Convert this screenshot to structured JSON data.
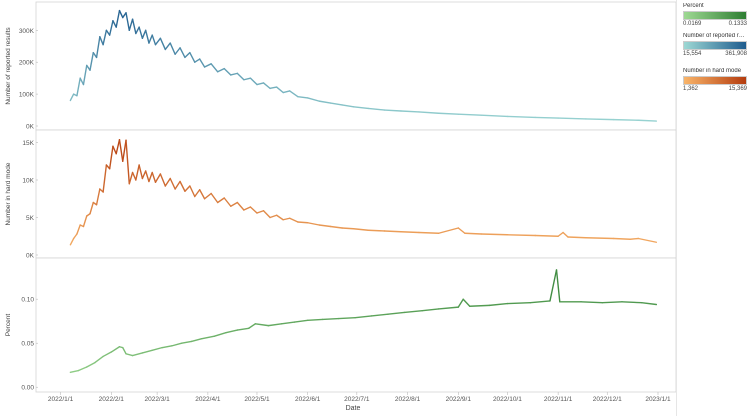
{
  "chart_data": {
    "type": "line",
    "xlabel": "Date",
    "x_ticks": [
      "2022/1/1",
      "2022/2/1",
      "2022/3/1",
      "2022/4/1",
      "2022/5/1",
      "2022/6/1",
      "2022/7/1",
      "2022/8/1",
      "2022/9/1",
      "2022/10/1",
      "2022/11/1",
      "2022/12/1",
      "2023/1/1"
    ],
    "date_range": [
      "2022-01-07",
      "2022-12-31"
    ],
    "panels": [
      {
        "ylabel": "Number of reported results",
        "ylim": [
          0,
          370000
        ],
        "yticks": [
          {
            "v": 0,
            "label": "0K"
          },
          {
            "v": 100000,
            "label": "100K"
          },
          {
            "v": 200000,
            "label": "200K"
          },
          {
            "v": 300000,
            "label": "300K"
          }
        ],
        "color_low": "#9dd8d4",
        "color_high": "#1f5c8e",
        "points": [
          [
            "2022-01-07",
            80000
          ],
          [
            "2022-01-09",
            100000
          ],
          [
            "2022-01-11",
            95000
          ],
          [
            "2022-01-13",
            150000
          ],
          [
            "2022-01-15",
            130000
          ],
          [
            "2022-01-17",
            190000
          ],
          [
            "2022-01-19",
            175000
          ],
          [
            "2022-01-21",
            230000
          ],
          [
            "2022-01-23",
            215000
          ],
          [
            "2022-01-25",
            280000
          ],
          [
            "2022-01-27",
            255000
          ],
          [
            "2022-01-29",
            300000
          ],
          [
            "2022-01-31",
            285000
          ],
          [
            "2022-02-02",
            330000
          ],
          [
            "2022-02-04",
            310000
          ],
          [
            "2022-02-06",
            361908
          ],
          [
            "2022-02-08",
            340000
          ],
          [
            "2022-02-10",
            355000
          ],
          [
            "2022-02-12",
            300000
          ],
          [
            "2022-02-14",
            335000
          ],
          [
            "2022-02-16",
            290000
          ],
          [
            "2022-02-18",
            310000
          ],
          [
            "2022-02-20",
            275000
          ],
          [
            "2022-02-22",
            300000
          ],
          [
            "2022-02-24",
            260000
          ],
          [
            "2022-02-26",
            285000
          ],
          [
            "2022-02-28",
            255000
          ],
          [
            "2022-03-03",
            275000
          ],
          [
            "2022-03-06",
            240000
          ],
          [
            "2022-03-09",
            260000
          ],
          [
            "2022-03-12",
            225000
          ],
          [
            "2022-03-15",
            245000
          ],
          [
            "2022-03-18",
            215000
          ],
          [
            "2022-03-21",
            230000
          ],
          [
            "2022-03-24",
            200000
          ],
          [
            "2022-03-27",
            210000
          ],
          [
            "2022-03-30",
            185000
          ],
          [
            "2022-04-03",
            195000
          ],
          [
            "2022-04-07",
            170000
          ],
          [
            "2022-04-11",
            180000
          ],
          [
            "2022-04-15",
            160000
          ],
          [
            "2022-04-19",
            165000
          ],
          [
            "2022-04-23",
            145000
          ],
          [
            "2022-04-27",
            150000
          ],
          [
            "2022-05-01",
            130000
          ],
          [
            "2022-05-05",
            135000
          ],
          [
            "2022-05-09",
            118000
          ],
          [
            "2022-05-13",
            122000
          ],
          [
            "2022-05-17",
            105000
          ],
          [
            "2022-05-21",
            110000
          ],
          [
            "2022-05-26",
            92000
          ],
          [
            "2022-06-01",
            88000
          ],
          [
            "2022-06-08",
            78000
          ],
          [
            "2022-06-15",
            72000
          ],
          [
            "2022-06-22",
            66000
          ],
          [
            "2022-06-29",
            60000
          ],
          [
            "2022-07-08",
            55000
          ],
          [
            "2022-07-18",
            50000
          ],
          [
            "2022-07-28",
            47000
          ],
          [
            "2022-08-08",
            44000
          ],
          [
            "2022-08-20",
            40000
          ],
          [
            "2022-09-01",
            37000
          ],
          [
            "2022-09-15",
            34000
          ],
          [
            "2022-10-01",
            30000
          ],
          [
            "2022-10-18",
            27000
          ],
          [
            "2022-11-01",
            25000
          ],
          [
            "2022-11-18",
            22000
          ],
          [
            "2022-12-05",
            20000
          ],
          [
            "2022-12-20",
            18000
          ],
          [
            "2022-12-31",
            15554
          ]
        ]
      },
      {
        "ylabel": "Number in hard mode",
        "ylim": [
          0,
          16000
        ],
        "yticks": [
          {
            "v": 0,
            "label": "0K"
          },
          {
            "v": 5000,
            "label": "5K"
          },
          {
            "v": 10000,
            "label": "10K"
          },
          {
            "v": 15000,
            "label": "15K"
          }
        ],
        "color_low": "#f9b56a",
        "color_high": "#b43c0e",
        "points": [
          [
            "2022-01-07",
            1362
          ],
          [
            "2022-01-09",
            2200
          ],
          [
            "2022-01-11",
            2800
          ],
          [
            "2022-01-13",
            4000
          ],
          [
            "2022-01-15",
            3800
          ],
          [
            "2022-01-17",
            5200
          ],
          [
            "2022-01-19",
            5500
          ],
          [
            "2022-01-21",
            7000
          ],
          [
            "2022-01-23",
            6700
          ],
          [
            "2022-01-25",
            8800
          ],
          [
            "2022-01-27",
            8400
          ],
          [
            "2022-01-29",
            12000
          ],
          [
            "2022-01-31",
            11500
          ],
          [
            "2022-02-02",
            14500
          ],
          [
            "2022-02-04",
            13500
          ],
          [
            "2022-02-06",
            15369
          ],
          [
            "2022-02-08",
            12500
          ],
          [
            "2022-02-10",
            15300
          ],
          [
            "2022-02-12",
            9500
          ],
          [
            "2022-02-14",
            11000
          ],
          [
            "2022-02-16",
            10000
          ],
          [
            "2022-02-18",
            12000
          ],
          [
            "2022-02-20",
            10200
          ],
          [
            "2022-02-22",
            11200
          ],
          [
            "2022-02-24",
            9800
          ],
          [
            "2022-02-26",
            11000
          ],
          [
            "2022-02-28",
            9700
          ],
          [
            "2022-03-03",
            10800
          ],
          [
            "2022-03-06",
            9200
          ],
          [
            "2022-03-09",
            10200
          ],
          [
            "2022-03-12",
            8800
          ],
          [
            "2022-03-15",
            9800
          ],
          [
            "2022-03-18",
            8500
          ],
          [
            "2022-03-21",
            9200
          ],
          [
            "2022-03-24",
            7800
          ],
          [
            "2022-03-27",
            8700
          ],
          [
            "2022-03-30",
            7500
          ],
          [
            "2022-04-03",
            8200
          ],
          [
            "2022-04-07",
            7000
          ],
          [
            "2022-04-11",
            7600
          ],
          [
            "2022-04-15",
            6500
          ],
          [
            "2022-04-19",
            7000
          ],
          [
            "2022-04-23",
            6000
          ],
          [
            "2022-04-27",
            6400
          ],
          [
            "2022-05-01",
            5600
          ],
          [
            "2022-05-05",
            5900
          ],
          [
            "2022-05-09",
            5000
          ],
          [
            "2022-05-13",
            5300
          ],
          [
            "2022-05-17",
            4700
          ],
          [
            "2022-05-21",
            4900
          ],
          [
            "2022-05-26",
            4400
          ],
          [
            "2022-06-01",
            4300
          ],
          [
            "2022-06-08",
            4000
          ],
          [
            "2022-06-15",
            3800
          ],
          [
            "2022-06-22",
            3600
          ],
          [
            "2022-06-29",
            3500
          ],
          [
            "2022-07-08",
            3300
          ],
          [
            "2022-07-18",
            3200
          ],
          [
            "2022-07-28",
            3100
          ],
          [
            "2022-08-08",
            3000
          ],
          [
            "2022-08-20",
            2900
          ],
          [
            "2022-09-01",
            3600
          ],
          [
            "2022-09-05",
            2900
          ],
          [
            "2022-09-15",
            2800
          ],
          [
            "2022-10-01",
            2700
          ],
          [
            "2022-10-18",
            2600
          ],
          [
            "2022-11-01",
            2500
          ],
          [
            "2022-11-04",
            3000
          ],
          [
            "2022-11-07",
            2400
          ],
          [
            "2022-11-18",
            2300
          ],
          [
            "2022-12-05",
            2200
          ],
          [
            "2022-12-15",
            2100
          ],
          [
            "2022-12-20",
            2200
          ],
          [
            "2022-12-31",
            1700
          ]
        ]
      },
      {
        "ylabel": "Percent",
        "ylim": [
          -0.002,
          0.14
        ],
        "yticks": [
          {
            "v": 0,
            "label": "0.00"
          },
          {
            "v": 0.05,
            "label": "0.05"
          },
          {
            "v": 0.1,
            "label": "0.10"
          }
        ],
        "color_low": "#9ed993",
        "color_high": "#2e7d32",
        "points": [
          [
            "2022-01-07",
            0.0169
          ],
          [
            "2022-01-12",
            0.019
          ],
          [
            "2022-01-17",
            0.023
          ],
          [
            "2022-01-22",
            0.028
          ],
          [
            "2022-01-27",
            0.035
          ],
          [
            "2022-02-01",
            0.04
          ],
          [
            "2022-02-06",
            0.046
          ],
          [
            "2022-02-08",
            0.045
          ],
          [
            "2022-02-10",
            0.038
          ],
          [
            "2022-02-14",
            0.036
          ],
          [
            "2022-02-20",
            0.039
          ],
          [
            "2022-02-26",
            0.042
          ],
          [
            "2022-03-04",
            0.045
          ],
          [
            "2022-03-10",
            0.047
          ],
          [
            "2022-03-16",
            0.05
          ],
          [
            "2022-03-22",
            0.052
          ],
          [
            "2022-03-28",
            0.055
          ],
          [
            "2022-04-05",
            0.058
          ],
          [
            "2022-04-12",
            0.062
          ],
          [
            "2022-04-19",
            0.065
          ],
          [
            "2022-04-26",
            0.067
          ],
          [
            "2022-04-30",
            0.072
          ],
          [
            "2022-05-08",
            0.07
          ],
          [
            "2022-05-16",
            0.072
          ],
          [
            "2022-05-24",
            0.074
          ],
          [
            "2022-06-01",
            0.076
          ],
          [
            "2022-06-10",
            0.077
          ],
          [
            "2022-06-20",
            0.078
          ],
          [
            "2022-06-30",
            0.079
          ],
          [
            "2022-07-10",
            0.081
          ],
          [
            "2022-07-20",
            0.083
          ],
          [
            "2022-07-30",
            0.085
          ],
          [
            "2022-08-10",
            0.087
          ],
          [
            "2022-08-20",
            0.089
          ],
          [
            "2022-09-01",
            0.091
          ],
          [
            "2022-09-04",
            0.1
          ],
          [
            "2022-09-08",
            0.092
          ],
          [
            "2022-09-20",
            0.093
          ],
          [
            "2022-10-01",
            0.095
          ],
          [
            "2022-10-15",
            0.096
          ],
          [
            "2022-10-27",
            0.098
          ],
          [
            "2022-10-31",
            0.1333
          ],
          [
            "2022-11-02",
            0.097
          ],
          [
            "2022-11-15",
            0.097
          ],
          [
            "2022-11-28",
            0.096
          ],
          [
            "2022-12-10",
            0.097
          ],
          [
            "2022-12-22",
            0.096
          ],
          [
            "2022-12-31",
            0.094
          ]
        ]
      }
    ]
  },
  "legend": [
    {
      "title": "Percent",
      "min": "0.0169",
      "max": "0.1333",
      "color_low": "#9ed993",
      "color_high": "#2e7d32"
    },
    {
      "title": "Number of reported res..",
      "min": "15,554",
      "max": "361,908",
      "color_low": "#9dd8d4",
      "color_high": "#1f5c8e"
    },
    {
      "title": "Number in hard mode",
      "min": "1,362",
      "max": "15,369",
      "color_low": "#f9b56a",
      "color_high": "#b43c0e"
    }
  ]
}
